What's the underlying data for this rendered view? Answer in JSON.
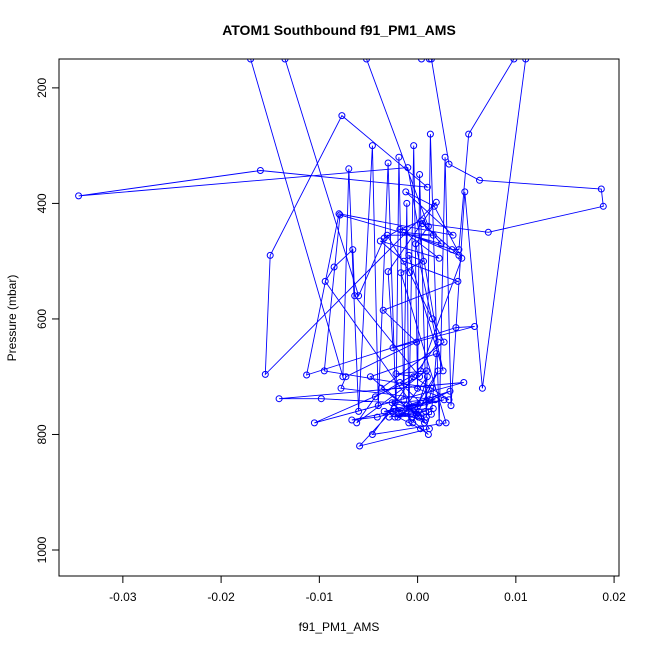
{
  "chart_data": {
    "type": "line",
    "title": "ATOM1 Southbound f91_PM1_AMS",
    "xlabel": "f91_PM1_AMS",
    "ylabel": "Pressure (mbar)",
    "xlim": [
      -0.0365,
      0.0205
    ],
    "ylim": [
      1045,
      150
    ],
    "y_reversed": true,
    "x_ticks": [
      -0.03,
      -0.02,
      -0.01,
      0.0,
      0.01,
      0.02
    ],
    "x_tick_labels": [
      "-0.03",
      "-0.02",
      "-0.01",
      "0.00",
      "0.01",
      "0.02"
    ],
    "y_ticks": [
      200,
      400,
      600,
      800,
      1000
    ],
    "y_tick_labels": [
      "200",
      "400",
      "600",
      "800",
      "1000"
    ],
    "grid": false,
    "legend": "none",
    "color": "#0000ff",
    "series": [
      {
        "x": [
          0.0014,
          0.0032,
          0.0063,
          0.0187,
          0.0189,
          0.0072,
          0.0005,
          0.0042,
          -0.0013,
          0.0022,
          -0.0038,
          -0.0014,
          0.0041,
          -0.0035,
          -0.0001,
          -0.0073,
          -0.0078,
          0.0018,
          -0.0025,
          -0.0067,
          -0.0041,
          0.0027,
          -0.0024,
          -0.0059,
          0.0012,
          -0.0094,
          -0.0085,
          -0.0066,
          -0.0064,
          0.0002,
          -0.0105,
          0.0047,
          -0.0141,
          -0.0098,
          -0.0023,
          0.0012,
          -0.0019,
          -0.0006,
          0.0008,
          0.0001,
          -0.0029,
          -0.0007,
          0.0016,
          -0.0034,
          0.0003,
          -0.0018,
          0.0032,
          -0.0004,
          -0.0022,
          0.0009,
          -0.0062,
          -0.0043,
          0.0003,
          0.0045,
          0.0017,
          -0.0012,
          0.0036,
          -0.008,
          -0.0113,
          0.0039,
          0.0058,
          -0.0025,
          -0.003,
          0.0019,
          -0.0155,
          -0.015,
          -0.0077,
          0.001,
          -0.016,
          -0.0345,
          -0.001,
          0.0021,
          -0.0046,
          0.0029,
          -0.0017,
          0.0006,
          -0.0009,
          0.0026,
          -0.0002,
          0.0011,
          -0.0052,
          0.0004
        ],
        "y": [
          150,
          332,
          360,
          375,
          405,
          450,
          435,
          490,
          450,
          495,
          465,
          500,
          535,
          585,
          640,
          700,
          720,
          740,
          760,
          775,
          770,
          740,
          755,
          820,
          790,
          535,
          510,
          480,
          560,
          700,
          780,
          710,
          738,
          738,
          745,
          740,
          765,
          770,
          775,
          760,
          770,
          765,
          755,
          760,
          745,
          710,
          740,
          700,
          695,
          690,
          780,
          735,
          690,
          495,
          405,
          380,
          455,
          418,
          697,
          615,
          613,
          650,
          518,
          398,
          696,
          490,
          248,
          372,
          343,
          387,
          338,
          640,
          800,
          780,
          520,
          500,
          490,
          690,
          470,
          440,
          150,
          150
        ]
      },
      {
        "x": [
          -0.0135,
          -0.006,
          -0.0034,
          -0.0018,
          0.0004,
          0.0024,
          -0.0079,
          -0.0095,
          0.0015,
          0.0008,
          -0.0023,
          0.0033,
          -0.0011,
          0.0001,
          -0.0048,
          0.0019,
          0.0014,
          -0.002,
          0.0003,
          0.0011,
          -0.0026,
          -0.0003,
          0.0021,
          -0.0005,
          0.001,
          -0.0016,
          0.0007,
          -0.0001,
          -0.0037,
          0.0027,
          0.0015,
          -0.0008,
          -0.0031,
          0.0016,
          -0.0015,
          0.0035,
          0.0042,
          0.0052,
          0.0098,
          0.0012
        ],
        "y": [
          150,
          560,
          460,
          445,
          430,
          470,
          420,
          690,
          720,
          760,
          770,
          725,
          750,
          770,
          700,
          660,
          765,
          770,
          790,
          800,
          745,
          755,
          690,
          780,
          700,
          760,
          780,
          765,
          720,
          640,
          600,
          520,
          455,
          455,
          450,
          480,
          480,
          280,
          150,
          150
        ]
      },
      {
        "x": [
          -0.017,
          -0.0076,
          -0.007,
          -0.006,
          -0.0046,
          -0.004,
          -0.003,
          -0.0022,
          -0.0019,
          -0.0014,
          -0.0011,
          -0.0009,
          -0.0004,
          0.0,
          0.0002,
          0.0009,
          0.0013,
          0.0022,
          0.0028,
          0.0034,
          0.0048,
          0.0066,
          0.011
        ],
        "y": [
          150,
          700,
          340,
          760,
          300,
          750,
          330,
          760,
          320,
          740,
          400,
          780,
          300,
          720,
          350,
          770,
          280,
          780,
          320,
          750,
          380,
          720,
          150
        ]
      }
    ]
  }
}
